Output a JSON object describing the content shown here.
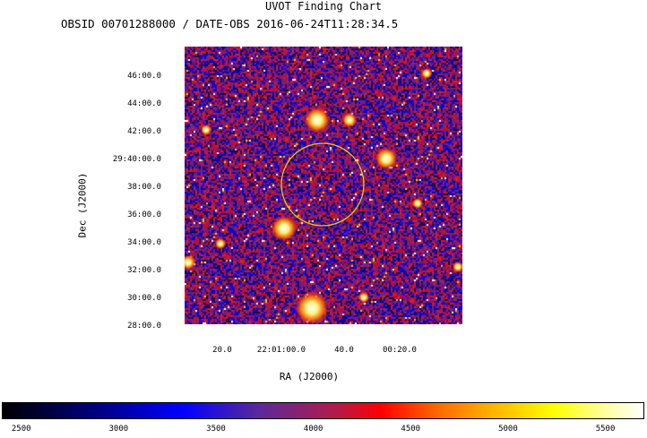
{
  "chart_data": {
    "type": "heatmap",
    "title": "UVOT Finding Chart",
    "subtitle": "OBSID 00701288000 / DATE-OBS 2016-06-24T11:28:34.5",
    "xlabel": "RA (J2000)",
    "ylabel": "Dec (J2000)",
    "x_ticks": [
      "20.0",
      "22:01:00.0",
      "40.0",
      "00:20.0"
    ],
    "y_ticks": [
      "46:00.0",
      "44:00.0",
      "42:00.0",
      "29:40:00.0",
      "38:00.0",
      "36:00.0",
      "34:00.0",
      "32:00.0",
      "30:00.0",
      "28:00.0"
    ],
    "circle_color": "#e8d000",
    "colorbar": {
      "ticks": [
        2500,
        3000,
        3500,
        4000,
        4500,
        5000,
        5500
      ],
      "range": [
        2400,
        5700
      ]
    }
  }
}
